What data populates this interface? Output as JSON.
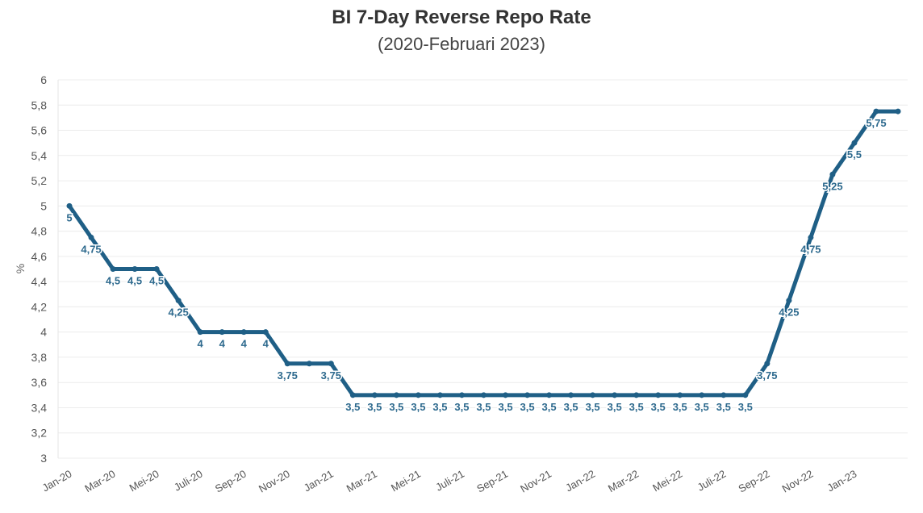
{
  "chart_data": {
    "type": "line",
    "title": "BI 7-Day Reverse Repo Rate",
    "subtitle": "(2020-Februari 2023)",
    "ylabel": "%",
    "xlabel": "",
    "ylim": [
      3,
      6
    ],
    "yticks": [
      "3",
      "3,2",
      "3,4",
      "3,6",
      "3,8",
      "4",
      "4,2",
      "4,4",
      "4,6",
      "4,8",
      "5",
      "5,2",
      "5,4",
      "5,6",
      "5,8",
      "6"
    ],
    "xtick_labels": [
      "Jan-20",
      "Mar-20",
      "Mei-20",
      "Juli-20",
      "Sep-20",
      "Nov-20",
      "Jan-21",
      "Mar-21",
      "Mei-21",
      "Juli-21",
      "Sep-21",
      "Nov-21",
      "Jan-22",
      "Mar-22",
      "Mei-22",
      "Juli-22",
      "Sep-22",
      "Nov-22",
      "Jan-23"
    ],
    "grid": true,
    "color": "#1f5f86",
    "label_color": "#2e6a8e",
    "values": [
      5,
      4.75,
      4.5,
      4.5,
      4.5,
      4.25,
      4,
      4,
      4,
      4,
      3.75,
      3.75,
      3.75,
      3.5,
      3.5,
      3.5,
      3.5,
      3.5,
      3.5,
      3.5,
      3.5,
      3.5,
      3.5,
      3.5,
      3.5,
      3.5,
      3.5,
      3.5,
      3.5,
      3.5,
      3.5,
      3.5,
      3.75,
      4.25,
      4.75,
      5.25,
      5.5,
      5.75,
      5.75
    ],
    "data_labels": [
      "5",
      "4,75",
      "4,5",
      "4,5",
      "4,5",
      "4,25",
      "4",
      "4",
      "4",
      "4",
      "3,75",
      null,
      "3,75",
      "3,5",
      "3,5",
      "3,5",
      "3,5",
      "3,5",
      "3,5",
      "3,5",
      "3,5",
      "3,5",
      "3,5",
      "3,5",
      "3,5",
      "3,5",
      "3,5",
      "3,5",
      "3,5",
      "3,5",
      "3,5",
      "3,5",
      "3,75",
      "4,25",
      "4,75",
      "5,25",
      "5,5",
      "5,75",
      null
    ]
  }
}
